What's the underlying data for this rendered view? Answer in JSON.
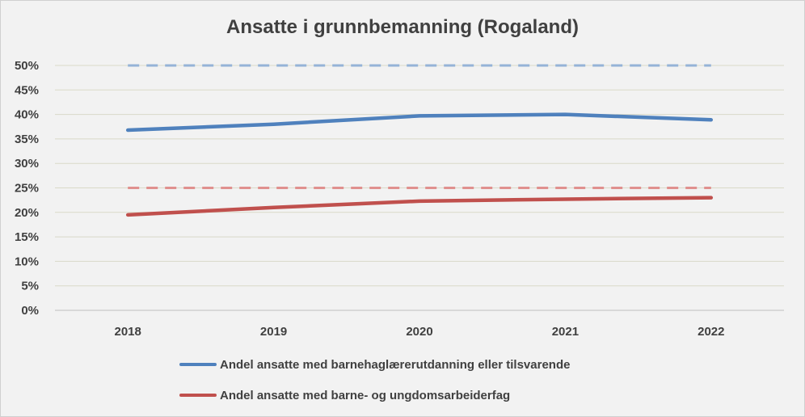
{
  "chart_data": {
    "type": "line",
    "title": "Ansatte i grunnbemanning (Rogaland)",
    "xlabel": "",
    "ylabel": "",
    "categories": [
      "2018",
      "2019",
      "2020",
      "2021",
      "2022"
    ],
    "ylim": [
      0,
      50
    ],
    "yticks": [
      "0%",
      "5%",
      "10%",
      "15%",
      "20%",
      "25%",
      "30%",
      "35%",
      "40%",
      "45%",
      "50%"
    ],
    "grid": true,
    "legend_position": "bottom",
    "series": [
      {
        "name": "Andel ansatte med barnehaglærerutdanning eller tilsvarende",
        "values": [
          36.8,
          38.0,
          39.7,
          40.0,
          38.9
        ],
        "color": "#4f81bd",
        "target": 50,
        "target_color": "#95b3d7"
      },
      {
        "name": "Andel ansatte med barne- og ungdomsarbeiderfag",
        "values": [
          19.5,
          21.0,
          22.3,
          22.7,
          23.0
        ],
        "color": "#c0504d",
        "target": 25,
        "target_color": "#e0908e"
      }
    ]
  }
}
